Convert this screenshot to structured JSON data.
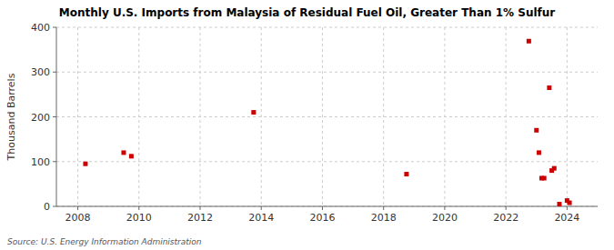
{
  "chart_data": {
    "type": "scatter",
    "title": "Monthly U.S. Imports from Malaysia of Residual Fuel Oil, Greater Than 1% Sulfur",
    "ylabel": "Thousand Barrels",
    "annotations": [
      "Source: U.S. Energy Information Administration"
    ],
    "x": [
      2008.25,
      2009.5,
      2009.75,
      2013.75,
      2018.75,
      2022.75,
      2023.0,
      2023.08,
      2023.17,
      2023.25,
      2023.42,
      2023.5,
      2023.58,
      2023.75,
      2024.0,
      2024.08
    ],
    "values": [
      95,
      120,
      112,
      210,
      72,
      369,
      170,
      120,
      63,
      63,
      265,
      80,
      85,
      5,
      13,
      8
    ],
    "color": "#cc0000",
    "marker": "square",
    "xlim": [
      2007.3,
      2025.0
    ],
    "ylim": [
      0,
      400
    ],
    "xticks": [
      2008,
      2010,
      2012,
      2014,
      2016,
      2018,
      2020,
      2022,
      2024
    ],
    "yticks": [
      0,
      100,
      200,
      300,
      400
    ],
    "grid": true
  }
}
